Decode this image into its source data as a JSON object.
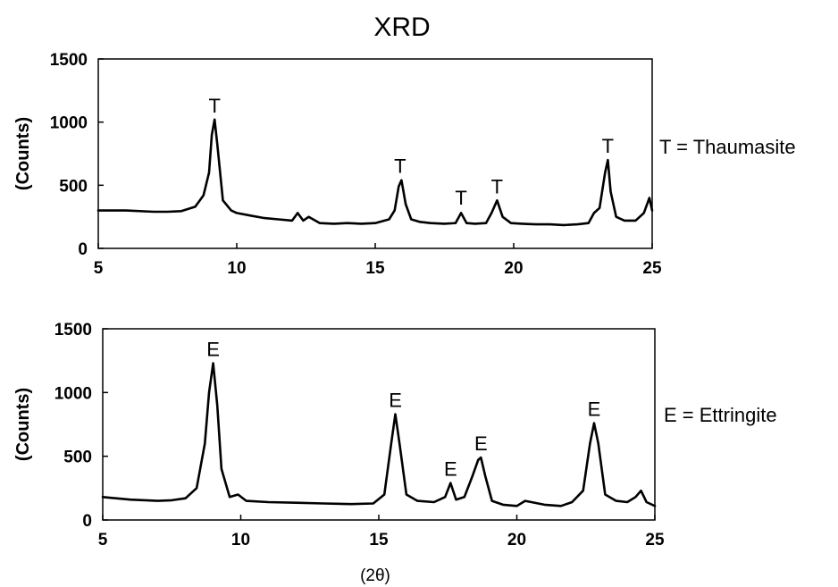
{
  "title": "XRD",
  "x_axis_label": "(2θ)",
  "chart_data": [
    {
      "type": "line",
      "ylabel": "(Counts)",
      "xlim": [
        5,
        25
      ],
      "ylim": [
        0,
        1500
      ],
      "xticks": [
        "5",
        "10",
        "15",
        "20",
        "25"
      ],
      "yticks": [
        "0",
        "500",
        "1000",
        "1500"
      ],
      "legend": "T = Thaumasite",
      "peak_labels": [
        {
          "text": "T",
          "x": 9.2,
          "y": 1020
        },
        {
          "text": "T",
          "x": 15.9,
          "y": 540
        },
        {
          "text": "T",
          "x": 18.1,
          "y": 290
        },
        {
          "text": "T",
          "x": 19.4,
          "y": 380
        },
        {
          "text": "T",
          "x": 23.4,
          "y": 700
        }
      ],
      "series": [
        {
          "x": [
            5,
            6,
            7,
            7.5,
            8,
            8.5,
            8.8,
            9.0,
            9.1,
            9.2,
            9.3,
            9.5,
            9.8,
            10,
            10.5,
            11,
            11.5,
            12,
            12.2,
            12.4,
            12.6,
            13,
            13.5,
            14,
            14.5,
            15,
            15.5,
            15.7,
            15.85,
            15.95,
            16.1,
            16.3,
            16.6,
            17,
            17.5,
            17.9,
            18.1,
            18.3,
            18.6,
            19,
            19.2,
            19.4,
            19.6,
            19.9,
            20.3,
            20.8,
            21.3,
            21.8,
            22.3,
            22.7,
            22.9,
            23.1,
            23.3,
            23.4,
            23.5,
            23.7,
            24.0,
            24.4,
            24.7,
            24.9,
            25
          ],
          "y": [
            300,
            300,
            290,
            290,
            295,
            330,
            420,
            600,
            900,
            1020,
            820,
            380,
            300,
            280,
            260,
            240,
            230,
            220,
            280,
            220,
            250,
            200,
            195,
            200,
            195,
            200,
            230,
            300,
            490,
            540,
            350,
            230,
            210,
            200,
            195,
            200,
            280,
            200,
            195,
            200,
            280,
            380,
            250,
            200,
            195,
            190,
            190,
            185,
            190,
            200,
            280,
            320,
            600,
            700,
            450,
            250,
            220,
            220,
            280,
            400,
            300
          ]
        }
      ]
    },
    {
      "type": "line",
      "ylabel": "(Counts)",
      "xlim": [
        5,
        25
      ],
      "ylim": [
        0,
        1500
      ],
      "xticks": [
        "5",
        "10",
        "15",
        "20",
        "25"
      ],
      "yticks": [
        "0",
        "500",
        "1000",
        "1500"
      ],
      "legend": "E = Ettringite",
      "peak_labels": [
        {
          "text": "E",
          "x": 9.0,
          "y": 1230
        },
        {
          "text": "E",
          "x": 15.6,
          "y": 830
        },
        {
          "text": "E",
          "x": 17.6,
          "y": 290
        },
        {
          "text": "E",
          "x": 18.7,
          "y": 490
        },
        {
          "text": "E",
          "x": 22.8,
          "y": 760
        }
      ],
      "series": [
        {
          "x": [
            5,
            6,
            7,
            7.5,
            8,
            8.4,
            8.7,
            8.85,
            9.0,
            9.15,
            9.3,
            9.6,
            9.9,
            10.2,
            11,
            12,
            13,
            14,
            14.8,
            15.2,
            15.45,
            15.6,
            15.75,
            16.0,
            16.4,
            17,
            17.4,
            17.6,
            17.8,
            18.1,
            18.4,
            18.6,
            18.7,
            18.85,
            19.1,
            19.5,
            20,
            20.3,
            21,
            21.6,
            22,
            22.4,
            22.65,
            22.8,
            22.95,
            23.2,
            23.6,
            24.0,
            24.3,
            24.5,
            24.7,
            25
          ],
          "y": [
            180,
            160,
            150,
            155,
            170,
            250,
            600,
            1000,
            1230,
            900,
            400,
            180,
            200,
            150,
            140,
            135,
            130,
            125,
            130,
            200,
            600,
            830,
            600,
            200,
            150,
            140,
            180,
            290,
            160,
            180,
            350,
            470,
            490,
            350,
            150,
            120,
            110,
            150,
            120,
            110,
            140,
            230,
            600,
            760,
            600,
            200,
            150,
            140,
            180,
            230,
            140,
            110
          ]
        }
      ]
    }
  ]
}
